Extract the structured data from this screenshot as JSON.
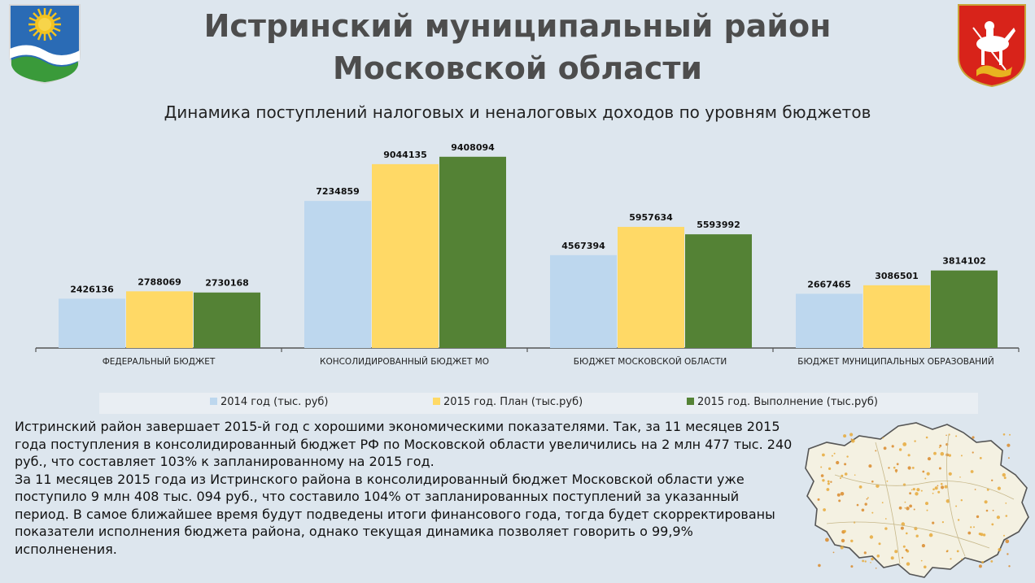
{
  "header": {
    "title_line1": "Истринский муниципальный район",
    "title_line2": "Московской области",
    "subtitle": "Динамика поступлений налоговых и неналоговых доходов по уровням бюджетов"
  },
  "chart_data": {
    "type": "bar",
    "categories": [
      "ФЕДЕРАЛЬНЫЙ БЮДЖЕТ",
      "КОНСОЛИДИРОВАННЫЙ БЮДЖЕТ МО",
      "БЮДЖЕТ МОСКОВСКОЙ ОБЛАСТИ",
      "БЮДЖЕТ МУНИЦИПАЛЬНЫХ ОБРАЗОВАНИЙ"
    ],
    "series": [
      {
        "name": "2014 год (тыс. руб)",
        "color": "#bdd7ee",
        "values": [
          2426136,
          7234859,
          4567394,
          2667465
        ]
      },
      {
        "name": "2015 год. План (тыс.руб)",
        "color": "#ffd966",
        "values": [
          2788069,
          9044135,
          5957634,
          3086501
        ]
      },
      {
        "name": "2015 год. Выполнение (тыс.руб)",
        "color": "#548235",
        "values": [
          2730168,
          9408094,
          5593992,
          3814102
        ]
      }
    ],
    "ylim": [
      0,
      10000000
    ],
    "grid": false,
    "legend": "bottom"
  },
  "body": {
    "paragraph1": "Истринский район завершает 2015-й год с хорошими экономическими показателями. Так, за 11 месяцев 2015 года поступления в консолидированный бюджет РФ по Московской области увеличились на 2 млн 477 тыс. 240 руб., что составляет 103% к запланированному на 2015 год.",
    "paragraph2": "За 11 месяцев 2015 года из Истринского района в консолидированный бюджет Московской области уже поступило 9 млн 408 тыс. 094 руб., что составило 104% от запланированных поступлений за указанный период. В самое ближайшее время будут подведены итоги финансового года, тогда будет скорректированы показатели исполнения бюджета района, однако текущая динамика позволяет говорить о 99,9% исполненения."
  },
  "icons": {
    "left": "istra-district-coat-of-arms-icon",
    "right": "moscow-oblast-coat-of-arms-icon",
    "map": "istra-district-map"
  }
}
